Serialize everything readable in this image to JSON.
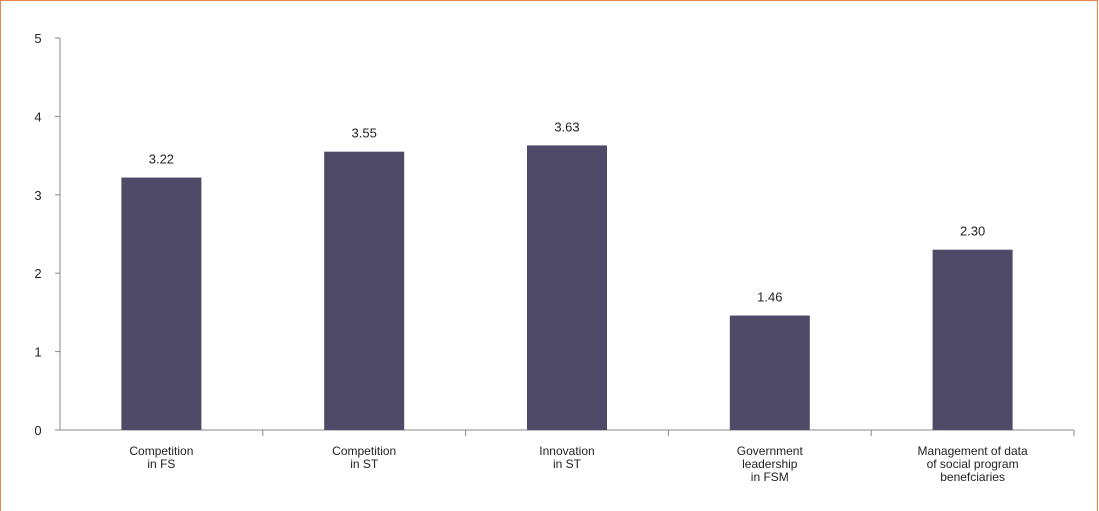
{
  "chart_data": {
    "type": "bar",
    "title": "",
    "xlabel": "",
    "ylabel": "",
    "ylim": [
      0,
      5
    ],
    "yticks": [
      "0",
      "1",
      "2",
      "3",
      "4",
      "5"
    ],
    "categories": [
      [
        "Competition",
        "in FS"
      ],
      [
        "Competition",
        "in ST"
      ],
      [
        "Innovation",
        "in ST"
      ],
      [
        "Government",
        "leadership",
        "in FSM"
      ],
      [
        "Management of data",
        "of social program",
        "benefciaries"
      ]
    ],
    "values": [
      3.22,
      3.55,
      3.63,
      1.46,
      2.3
    ],
    "value_labels": [
      "3.22",
      "3.55",
      "3.63",
      "1.46",
      "2.30"
    ],
    "bar_color": "#4F4A68",
    "frame_color": "#E8834A",
    "grid": false,
    "legend": "none"
  }
}
